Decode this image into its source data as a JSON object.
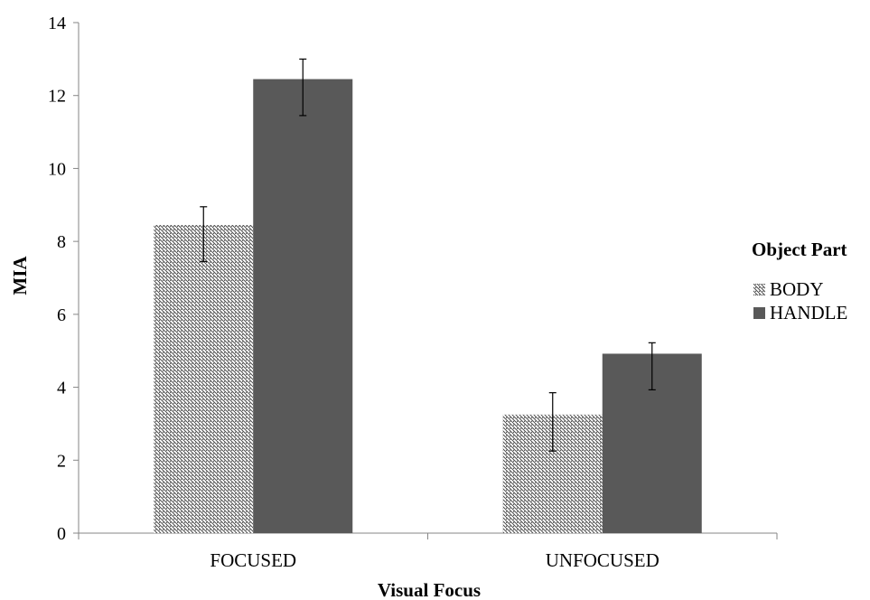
{
  "chart_data": {
    "type": "bar",
    "categories": [
      "FOCUSED",
      "UNFOCUSED"
    ],
    "series": [
      {
        "name": "BODY",
        "values": [
          8.45,
          3.25
        ],
        "error_low": [
          7.45,
          2.25
        ],
        "error_high": [
          8.95,
          3.85
        ],
        "fill": "hatched",
        "color": "#ffffff"
      },
      {
        "name": "HANDLE",
        "values": [
          12.45,
          4.92
        ],
        "error_low": [
          11.45,
          3.93
        ],
        "error_high": [
          13.0,
          5.22
        ],
        "fill": "solid",
        "color": "#595959"
      }
    ],
    "xlabel": "Visual Focus",
    "ylabel": "MIA",
    "ylim": [
      0,
      14
    ],
    "yticks": [
      0,
      2,
      4,
      6,
      8,
      10,
      12,
      14
    ],
    "legend_title": "Object Part",
    "legend_position": "right",
    "grid": false
  }
}
